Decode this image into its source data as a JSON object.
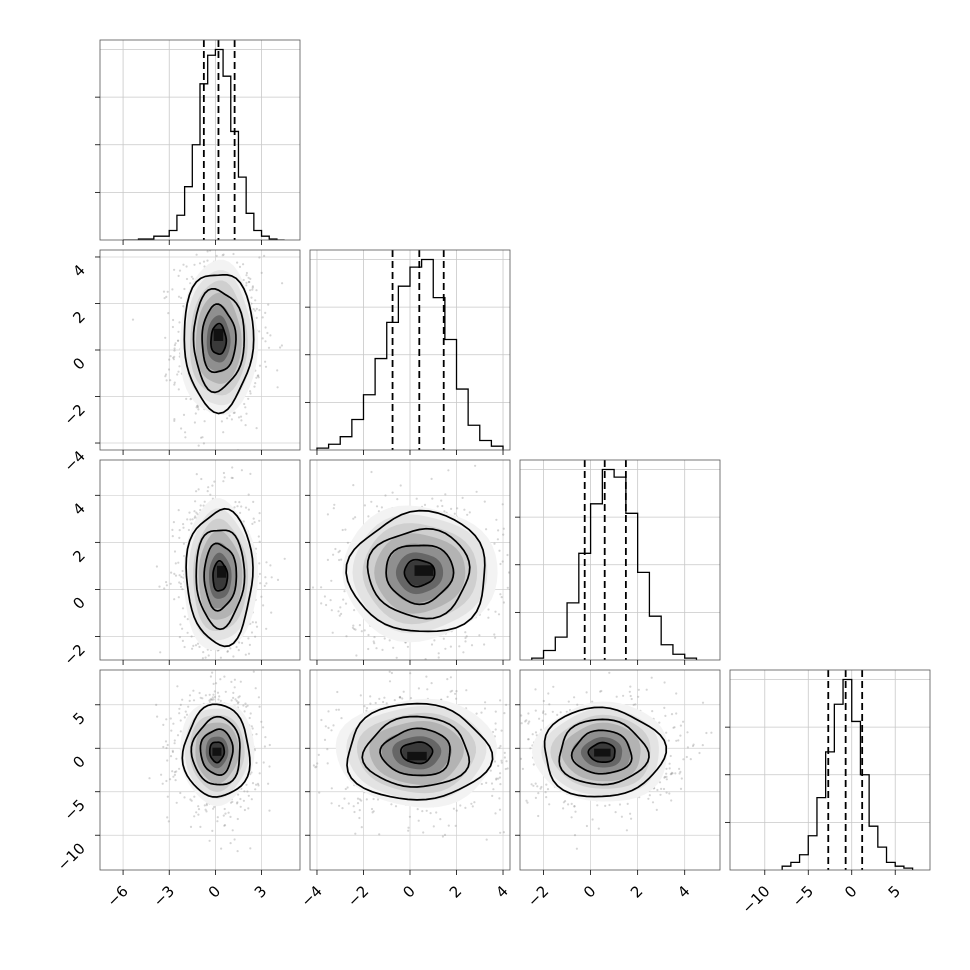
{
  "chart_data": {
    "type": "corner",
    "grid": true,
    "axes": {
      "p0": {
        "range": [
          -7.5,
          5.5
        ],
        "ticks": [
          -6,
          -3,
          0,
          3
        ]
      },
      "p1": {
        "range": [
          -4.3,
          4.3
        ],
        "ticks": [
          -4,
          -2,
          0,
          2,
          4
        ]
      },
      "p2": {
        "range": [
          -3.0,
          5.5
        ],
        "ticks": [
          -2,
          0,
          2,
          4
        ]
      },
      "p3": {
        "range": [
          -14.0,
          9.0
        ],
        "ticks": [
          -10,
          -5,
          0,
          5
        ]
      }
    },
    "diagonal": [
      {
        "param": "p0",
        "quantiles": [
          -0.75,
          0.2,
          1.25
        ],
        "ymax": 1.0,
        "bin_edges": [
          -6.0,
          -5.0,
          -4.0,
          -3.0,
          -2.5,
          -2.0,
          -1.5,
          -1.0,
          -0.5,
          0.0,
          0.5,
          1.0,
          1.5,
          2.0,
          2.5,
          3.0,
          3.5,
          4.0,
          4.5
        ],
        "counts": [
          0.0,
          0.005,
          0.02,
          0.05,
          0.13,
          0.28,
          0.5,
          0.82,
          0.97,
          1.0,
          0.86,
          0.57,
          0.33,
          0.14,
          0.05,
          0.02,
          0.005,
          0.0
        ]
      },
      {
        "param": "p1",
        "quantiles": [
          -0.75,
          0.4,
          1.45
        ],
        "ymax": 1.0,
        "bin_edges": [
          -4.0,
          -3.5,
          -3.0,
          -2.5,
          -2.0,
          -1.5,
          -1.0,
          -0.5,
          0.0,
          0.5,
          1.0,
          1.5,
          2.0,
          2.5,
          3.0,
          3.5,
          4.0
        ],
        "counts": [
          0.01,
          0.03,
          0.07,
          0.16,
          0.29,
          0.48,
          0.67,
          0.86,
          0.96,
          1.0,
          0.8,
          0.58,
          0.32,
          0.13,
          0.05,
          0.02
        ]
      },
      {
        "param": "p2",
        "quantiles": [
          -0.25,
          0.6,
          1.5
        ],
        "ymax": 1.0,
        "bin_edges": [
          -2.5,
          -2.0,
          -1.5,
          -1.0,
          -0.5,
          0.0,
          0.5,
          1.0,
          1.5,
          2.0,
          2.5,
          3.0,
          3.5,
          4.0,
          4.5
        ],
        "counts": [
          0.01,
          0.05,
          0.12,
          0.3,
          0.56,
          0.82,
          1.0,
          0.96,
          0.77,
          0.46,
          0.23,
          0.08,
          0.03,
          0.01
        ]
      },
      {
        "param": "p3",
        "quantiles": [
          -2.7,
          -0.7,
          1.2
        ],
        "ymax": 1.0,
        "bin_edges": [
          -8.0,
          -7.0,
          -6.0,
          -5.0,
          -4.0,
          -3.0,
          -2.0,
          -1.0,
          0.0,
          1.0,
          2.0,
          3.0,
          4.0,
          5.0,
          6.0,
          7.0
        ],
        "counts": [
          0.02,
          0.04,
          0.08,
          0.18,
          0.38,
          0.62,
          0.87,
          1.0,
          0.78,
          0.5,
          0.23,
          0.12,
          0.04,
          0.02,
          0.01
        ]
      }
    ],
    "pairs": [
      {
        "x": "p0",
        "y": "p1",
        "center": [
          0.2,
          0.45
        ],
        "sigma": [
          1.1,
          1.45
        ],
        "peak_offset": [
          0.0,
          0.2
        ]
      },
      {
        "x": "p0",
        "y": "p2",
        "center": [
          0.3,
          0.55
        ],
        "sigma": [
          1.05,
          1.4
        ],
        "peak_offset": [
          0.1,
          0.2
        ]
      },
      {
        "x": "p1",
        "y": "p2",
        "center": [
          0.4,
          0.7
        ],
        "sigma": [
          1.45,
          1.25
        ],
        "peak_offset": [
          0.2,
          0.1
        ]
      },
      {
        "x": "p0",
        "y": "p3",
        "center": [
          0.1,
          -0.4
        ],
        "sigma": [
          1.05,
          2.6
        ],
        "peak_offset": [
          0.0,
          0.0
        ]
      },
      {
        "x": "p1",
        "y": "p3",
        "center": [
          0.3,
          -0.5
        ],
        "sigma": [
          1.5,
          2.7
        ],
        "peak_offset": [
          0.0,
          -0.4
        ]
      },
      {
        "x": "p2",
        "y": "p3",
        "center": [
          0.5,
          -0.5
        ],
        "sigma": [
          1.25,
          2.5
        ],
        "peak_offset": [
          0.0,
          0.0
        ]
      }
    ]
  }
}
